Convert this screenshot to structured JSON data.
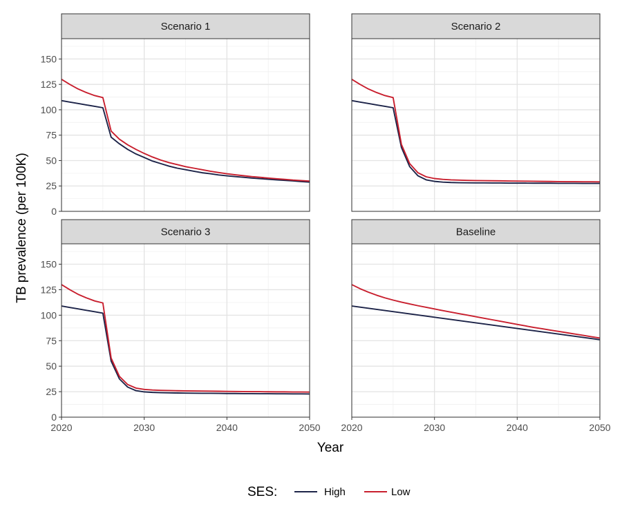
{
  "chart_data": {
    "type": "line",
    "xlabel": "Year",
    "ylabel": "TB prevalence (per 100K)",
    "xlim": [
      2020,
      2050
    ],
    "ylim": [
      0,
      170
    ],
    "x_ticks": [
      2020,
      2030,
      2040,
      2050
    ],
    "y_ticks": [
      0,
      25,
      50,
      75,
      100,
      125,
      150
    ],
    "grid": true,
    "legend": {
      "title": "SES:",
      "placement": "bottom",
      "entries": [
        {
          "name": "High",
          "color": "#1c2348"
        },
        {
          "name": "Low",
          "color": "#c81e2d"
        }
      ]
    },
    "x": [
      2020,
      2021,
      2022,
      2023,
      2024,
      2025,
      2026,
      2027,
      2028,
      2029,
      2030,
      2031,
      2032,
      2033,
      2034,
      2035,
      2036,
      2037,
      2038,
      2039,
      2040,
      2041,
      2042,
      2043,
      2044,
      2045,
      2046,
      2047,
      2048,
      2049,
      2050
    ],
    "panels": [
      {
        "title": "Scenario 1",
        "series": [
          {
            "name": "High",
            "values": [
              109,
              107.6,
              106.2,
              104.8,
              103.4,
              102,
              73,
              66.5,
              61,
              56.5,
              53,
              49.5,
              47,
              44.5,
              42.5,
              41,
              39.5,
              38,
              37,
              35.8,
              35,
              34.2,
              33.5,
              32.8,
              32.2,
              31.6,
              31,
              30.5,
              30,
              29.3,
              28.8
            ]
          },
          {
            "name": "Low",
            "values": [
              130,
              125,
              120.5,
              117,
              114,
              112,
              79,
              71,
              65.5,
              61,
              57,
              53.5,
              50.5,
              48,
              46,
              44,
              42.5,
              41,
              39.5,
              38.2,
              37,
              36,
              35.1,
              34.2,
              33.5,
              32.8,
              32.1,
              31.5,
              30.8,
              30.3,
              29.8
            ]
          }
        ]
      },
      {
        "title": "Scenario 2",
        "series": [
          {
            "name": "High",
            "values": [
              109,
              107.6,
              106.2,
              104.8,
              103.4,
              102,
              63,
              44,
              35,
              31,
              29.5,
              28.8,
              28.4,
              28.2,
              28.1,
              28,
              28,
              27.9,
              27.9,
              27.8,
              27.8,
              27.8,
              27.7,
              27.7,
              27.7,
              27.6,
              27.6,
              27.6,
              27.5,
              27.5,
              27.5
            ]
          },
          {
            "name": "Low",
            "values": [
              130,
              125,
              120.5,
              117,
              114,
              112,
              66,
              47,
              38,
              34,
              32.3,
              31.5,
              31,
              30.7,
              30.5,
              30.3,
              30.2,
              30.1,
              30,
              29.9,
              29.8,
              29.7,
              29.6,
              29.5,
              29.4,
              29.3,
              29.2,
              29.2,
              29.1,
              29.1,
              29
            ]
          }
        ]
      },
      {
        "title": "Scenario 3",
        "series": [
          {
            "name": "High",
            "values": [
              109,
              107.6,
              106.2,
              104.8,
              103.4,
              102,
              55,
              37.5,
              29.5,
              26,
              24.8,
              24.3,
              24,
              23.8,
              23.7,
              23.6,
              23.5,
              23.4,
              23.4,
              23.3,
              23.2,
              23.2,
              23.1,
              23.1,
              23,
              23,
              22.9,
              22.9,
              22.8,
              22.8,
              22.7
            ]
          },
          {
            "name": "Low",
            "values": [
              130,
              125,
              120.5,
              117,
              114,
              112,
              58,
              40,
              32,
              28.5,
              27.2,
              26.6,
              26.3,
              26.1,
              25.9,
              25.8,
              25.7,
              25.6,
              25.5,
              25.4,
              25.3,
              25.2,
              25.1,
              25,
              25,
              24.9,
              24.8,
              24.8,
              24.7,
              24.7,
              24.6
            ]
          }
        ]
      },
      {
        "title": "Baseline",
        "series": [
          {
            "name": "High",
            "values": [
              109,
              107.9,
              106.8,
              105.7,
              104.6,
              103.5,
              102.4,
              101.3,
              100.2,
              99.1,
              98,
              96.9,
              95.8,
              94.7,
              93.6,
              92.5,
              91.4,
              90.3,
              89.2,
              88.1,
              87,
              85.9,
              84.8,
              83.7,
              82.6,
              81.5,
              80.4,
              79.3,
              78.2,
              77.1,
              76
            ]
          },
          {
            "name": "Low",
            "values": [
              130,
              126,
              122.6,
              119.6,
              117,
              114.8,
              112.8,
              111,
              109.3,
              107.7,
              106.1,
              104.5,
              103,
              101.5,
              100,
              98.5,
              97,
              95.5,
              94,
              92.5,
              91,
              89.5,
              88,
              86.7,
              85.4,
              84.1,
              82.8,
              81.5,
              80.2,
              78.9,
              77.6
            ]
          }
        ]
      }
    ]
  }
}
